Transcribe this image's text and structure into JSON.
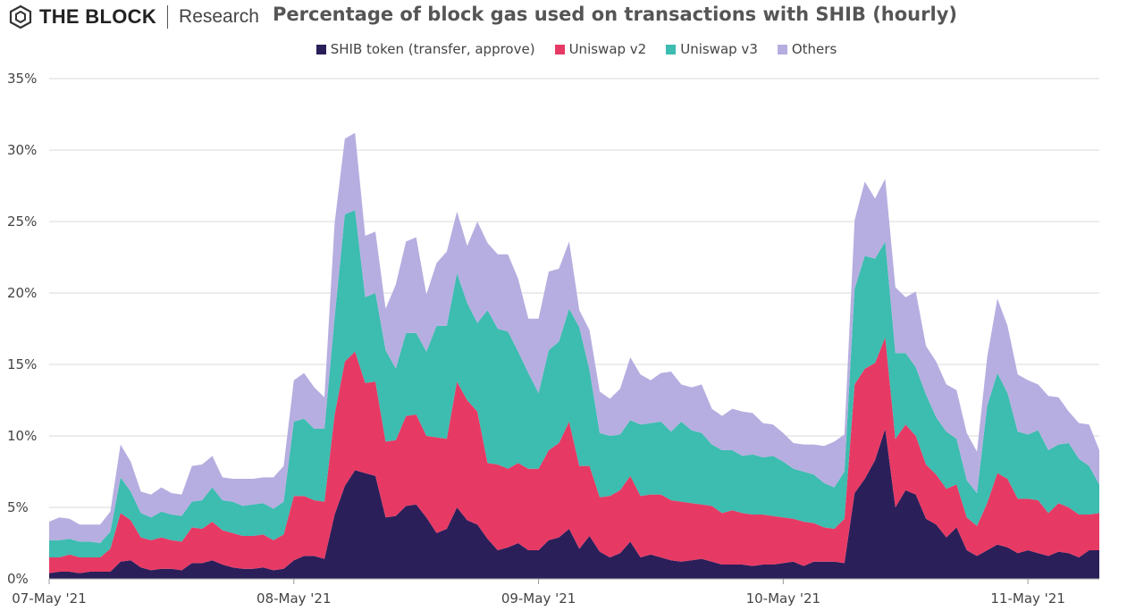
{
  "brand": {
    "name": "THE BLOCK",
    "sub": "Research",
    "logo_icon": "block-cube-icon"
  },
  "chart_data": {
    "type": "area",
    "stacked": true,
    "title": "Percentage of block gas used on transactions with SHIB (hourly)",
    "xlabel": "",
    "ylabel": "",
    "ylim": [
      0,
      35
    ],
    "yticks": [
      0,
      5,
      10,
      15,
      20,
      25,
      30,
      35
    ],
    "ytick_labels": [
      "0%",
      "5%",
      "10%",
      "15%",
      "20%",
      "25%",
      "30%",
      "35%"
    ],
    "xticks": [
      {
        "at": 0,
        "label": "07-May '21"
      },
      {
        "at": 24,
        "label": "08-May '21"
      },
      {
        "at": 48,
        "label": "09-May '21"
      },
      {
        "at": 72,
        "label": "10-May '21"
      },
      {
        "at": 96,
        "label": "11-May '21"
      }
    ],
    "grid": "horizontal",
    "legend_position": "top-center",
    "x": [
      0,
      1,
      2,
      3,
      4,
      5,
      6,
      7,
      8,
      9,
      10,
      11,
      12,
      13,
      14,
      15,
      16,
      17,
      18,
      19,
      20,
      21,
      22,
      23,
      24,
      25,
      26,
      27,
      28,
      29,
      30,
      31,
      32,
      33,
      34,
      35,
      36,
      37,
      38,
      39,
      40,
      41,
      42,
      43,
      44,
      45,
      46,
      47,
      48,
      49,
      50,
      51,
      52,
      53,
      54,
      55,
      56,
      57,
      58,
      59,
      60,
      61,
      62,
      63,
      64,
      65,
      66,
      67,
      68,
      69,
      70,
      71,
      72,
      73,
      74,
      75,
      76,
      77,
      78,
      79,
      80,
      81,
      82,
      83,
      84,
      85,
      86,
      87,
      88,
      89,
      90,
      91,
      92,
      93,
      94,
      95,
      96,
      97,
      98,
      99,
      100,
      101,
      102,
      103
    ],
    "series": [
      {
        "name": "SHIB token (transfer, approve)",
        "color": "#2b1f5a",
        "values": [
          0.4,
          0.5,
          0.5,
          0.4,
          0.5,
          0.5,
          0.5,
          1.2,
          1.3,
          0.8,
          0.6,
          0.7,
          0.7,
          0.6,
          1.1,
          1.1,
          1.3,
          1.0,
          0.8,
          0.7,
          0.7,
          0.8,
          0.6,
          0.7,
          1.3,
          1.6,
          1.6,
          1.4,
          4.5,
          6.5,
          7.6,
          7.4,
          7.2,
          4.3,
          4.4,
          5.1,
          5.2,
          4.3,
          3.2,
          3.5,
          5.0,
          4.1,
          3.8,
          2.8,
          2.0,
          2.2,
          2.5,
          2.0,
          2.0,
          2.7,
          2.9,
          3.5,
          2.1,
          3.0,
          1.9,
          1.5,
          1.8,
          2.6,
          1.5,
          1.7,
          1.5,
          1.3,
          1.2,
          1.3,
          1.4,
          1.2,
          1.0,
          1.0,
          1.0,
          0.9,
          1.0,
          1.0,
          1.1,
          1.2,
          0.9,
          1.2,
          1.2,
          1.2,
          1.1,
          6.0,
          7.0,
          8.3,
          10.5,
          5.0,
          6.2,
          5.9,
          4.2,
          3.8,
          2.9,
          3.6,
          2.0,
          1.6,
          2.0,
          2.4,
          2.2,
          1.8,
          2.0,
          1.8,
          1.6,
          1.9,
          1.8,
          1.5,
          2.0,
          2.0
        ]
      },
      {
        "name": "Uniswap v2",
        "color": "#e63a64",
        "values": [
          1.1,
          1.0,
          1.2,
          1.1,
          1.0,
          1.0,
          1.6,
          3.4,
          2.8,
          2.1,
          2.1,
          2.2,
          2.0,
          2.0,
          2.5,
          2.4,
          2.7,
          2.4,
          2.4,
          2.3,
          2.3,
          2.3,
          2.1,
          2.4,
          4.5,
          4.2,
          3.9,
          4.0,
          7.0,
          8.7,
          8.3,
          6.3,
          6.6,
          5.3,
          5.3,
          6.3,
          6.3,
          5.7,
          6.7,
          6.3,
          8.8,
          8.4,
          7.9,
          5.3,
          6.0,
          5.5,
          5.6,
          5.7,
          5.7,
          6.3,
          6.6,
          7.5,
          5.8,
          4.9,
          3.8,
          4.3,
          4.4,
          4.6,
          4.3,
          4.2,
          4.4,
          4.2,
          4.2,
          4.0,
          3.8,
          3.9,
          3.6,
          3.8,
          3.6,
          3.6,
          3.5,
          3.4,
          3.2,
          3.0,
          3.1,
          2.7,
          2.4,
          2.3,
          3.1,
          7.6,
          7.7,
          6.8,
          6.4,
          4.8,
          4.6,
          4.1,
          3.8,
          3.5,
          3.4,
          3.0,
          2.3,
          2.1,
          3.3,
          5.0,
          4.8,
          3.8,
          3.6,
          3.7,
          3.0,
          3.4,
          3.2,
          3.0,
          2.5,
          2.6
        ]
      },
      {
        "name": "Uniswap v3",
        "color": "#3dbcb0",
        "values": [
          1.2,
          1.2,
          1.1,
          1.1,
          1.1,
          1.0,
          1.2,
          2.5,
          2.0,
          1.7,
          1.6,
          1.8,
          1.8,
          1.8,
          1.8,
          2.0,
          2.4,
          2.1,
          2.2,
          2.1,
          2.2,
          2.2,
          2.2,
          2.3,
          5.2,
          5.4,
          5.0,
          5.1,
          6.8,
          10.3,
          9.9,
          6.0,
          6.2,
          6.4,
          5.0,
          5.8,
          5.7,
          5.9,
          7.8,
          7.9,
          7.6,
          6.8,
          6.2,
          10.7,
          9.5,
          9.6,
          7.8,
          6.7,
          5.3,
          7.0,
          7.1,
          7.9,
          9.7,
          6.7,
          4.5,
          4.2,
          3.9,
          3.9,
          5.0,
          5.0,
          5.1,
          4.8,
          5.6,
          5.1,
          5.0,
          4.3,
          4.4,
          4.2,
          4.0,
          4.2,
          4.0,
          4.2,
          3.9,
          3.5,
          3.5,
          3.4,
          3.1,
          2.9,
          3.3,
          6.7,
          7.9,
          7.3,
          6.7,
          6.0,
          5.0,
          4.8,
          4.9,
          4.0,
          4.0,
          3.2,
          2.6,
          2.3,
          6.8,
          7.0,
          6.0,
          4.7,
          4.5,
          4.9,
          4.4,
          4.1,
          4.5,
          3.9,
          3.4,
          2.0
        ]
      },
      {
        "name": "Others",
        "color": "#b6aee0",
        "values": [
          1.3,
          1.6,
          1.4,
          1.2,
          1.2,
          1.3,
          1.4,
          2.3,
          2.1,
          1.5,
          1.6,
          1.7,
          1.5,
          1.5,
          2.5,
          2.5,
          2.2,
          1.6,
          1.6,
          1.9,
          1.8,
          1.8,
          2.2,
          2.5,
          2.9,
          3.2,
          2.9,
          2.2,
          6.6,
          5.3,
          5.4,
          4.3,
          4.3,
          2.9,
          5.9,
          6.4,
          6.7,
          4.0,
          4.4,
          5.2,
          4.3,
          4.0,
          7.1,
          4.7,
          5.2,
          5.4,
          5.1,
          3.8,
          5.2,
          5.5,
          5.1,
          4.7,
          1.2,
          2.8,
          2.9,
          2.6,
          3.2,
          4.4,
          3.5,
          3.0,
          3.4,
          4.2,
          2.6,
          3.0,
          3.4,
          2.5,
          2.4,
          2.9,
          3.1,
          2.9,
          2.4,
          2.2,
          2.0,
          1.8,
          1.9,
          2.1,
          2.6,
          3.2,
          2.6,
          4.8,
          5.2,
          4.2,
          4.4,
          4.6,
          3.9,
          5.3,
          3.4,
          3.9,
          3.3,
          3.4,
          3.3,
          2.9,
          3.4,
          5.2,
          4.7,
          4.0,
          3.8,
          3.2,
          3.8,
          3.3,
          2.2,
          2.5,
          2.9,
          2.4
        ]
      }
    ]
  }
}
